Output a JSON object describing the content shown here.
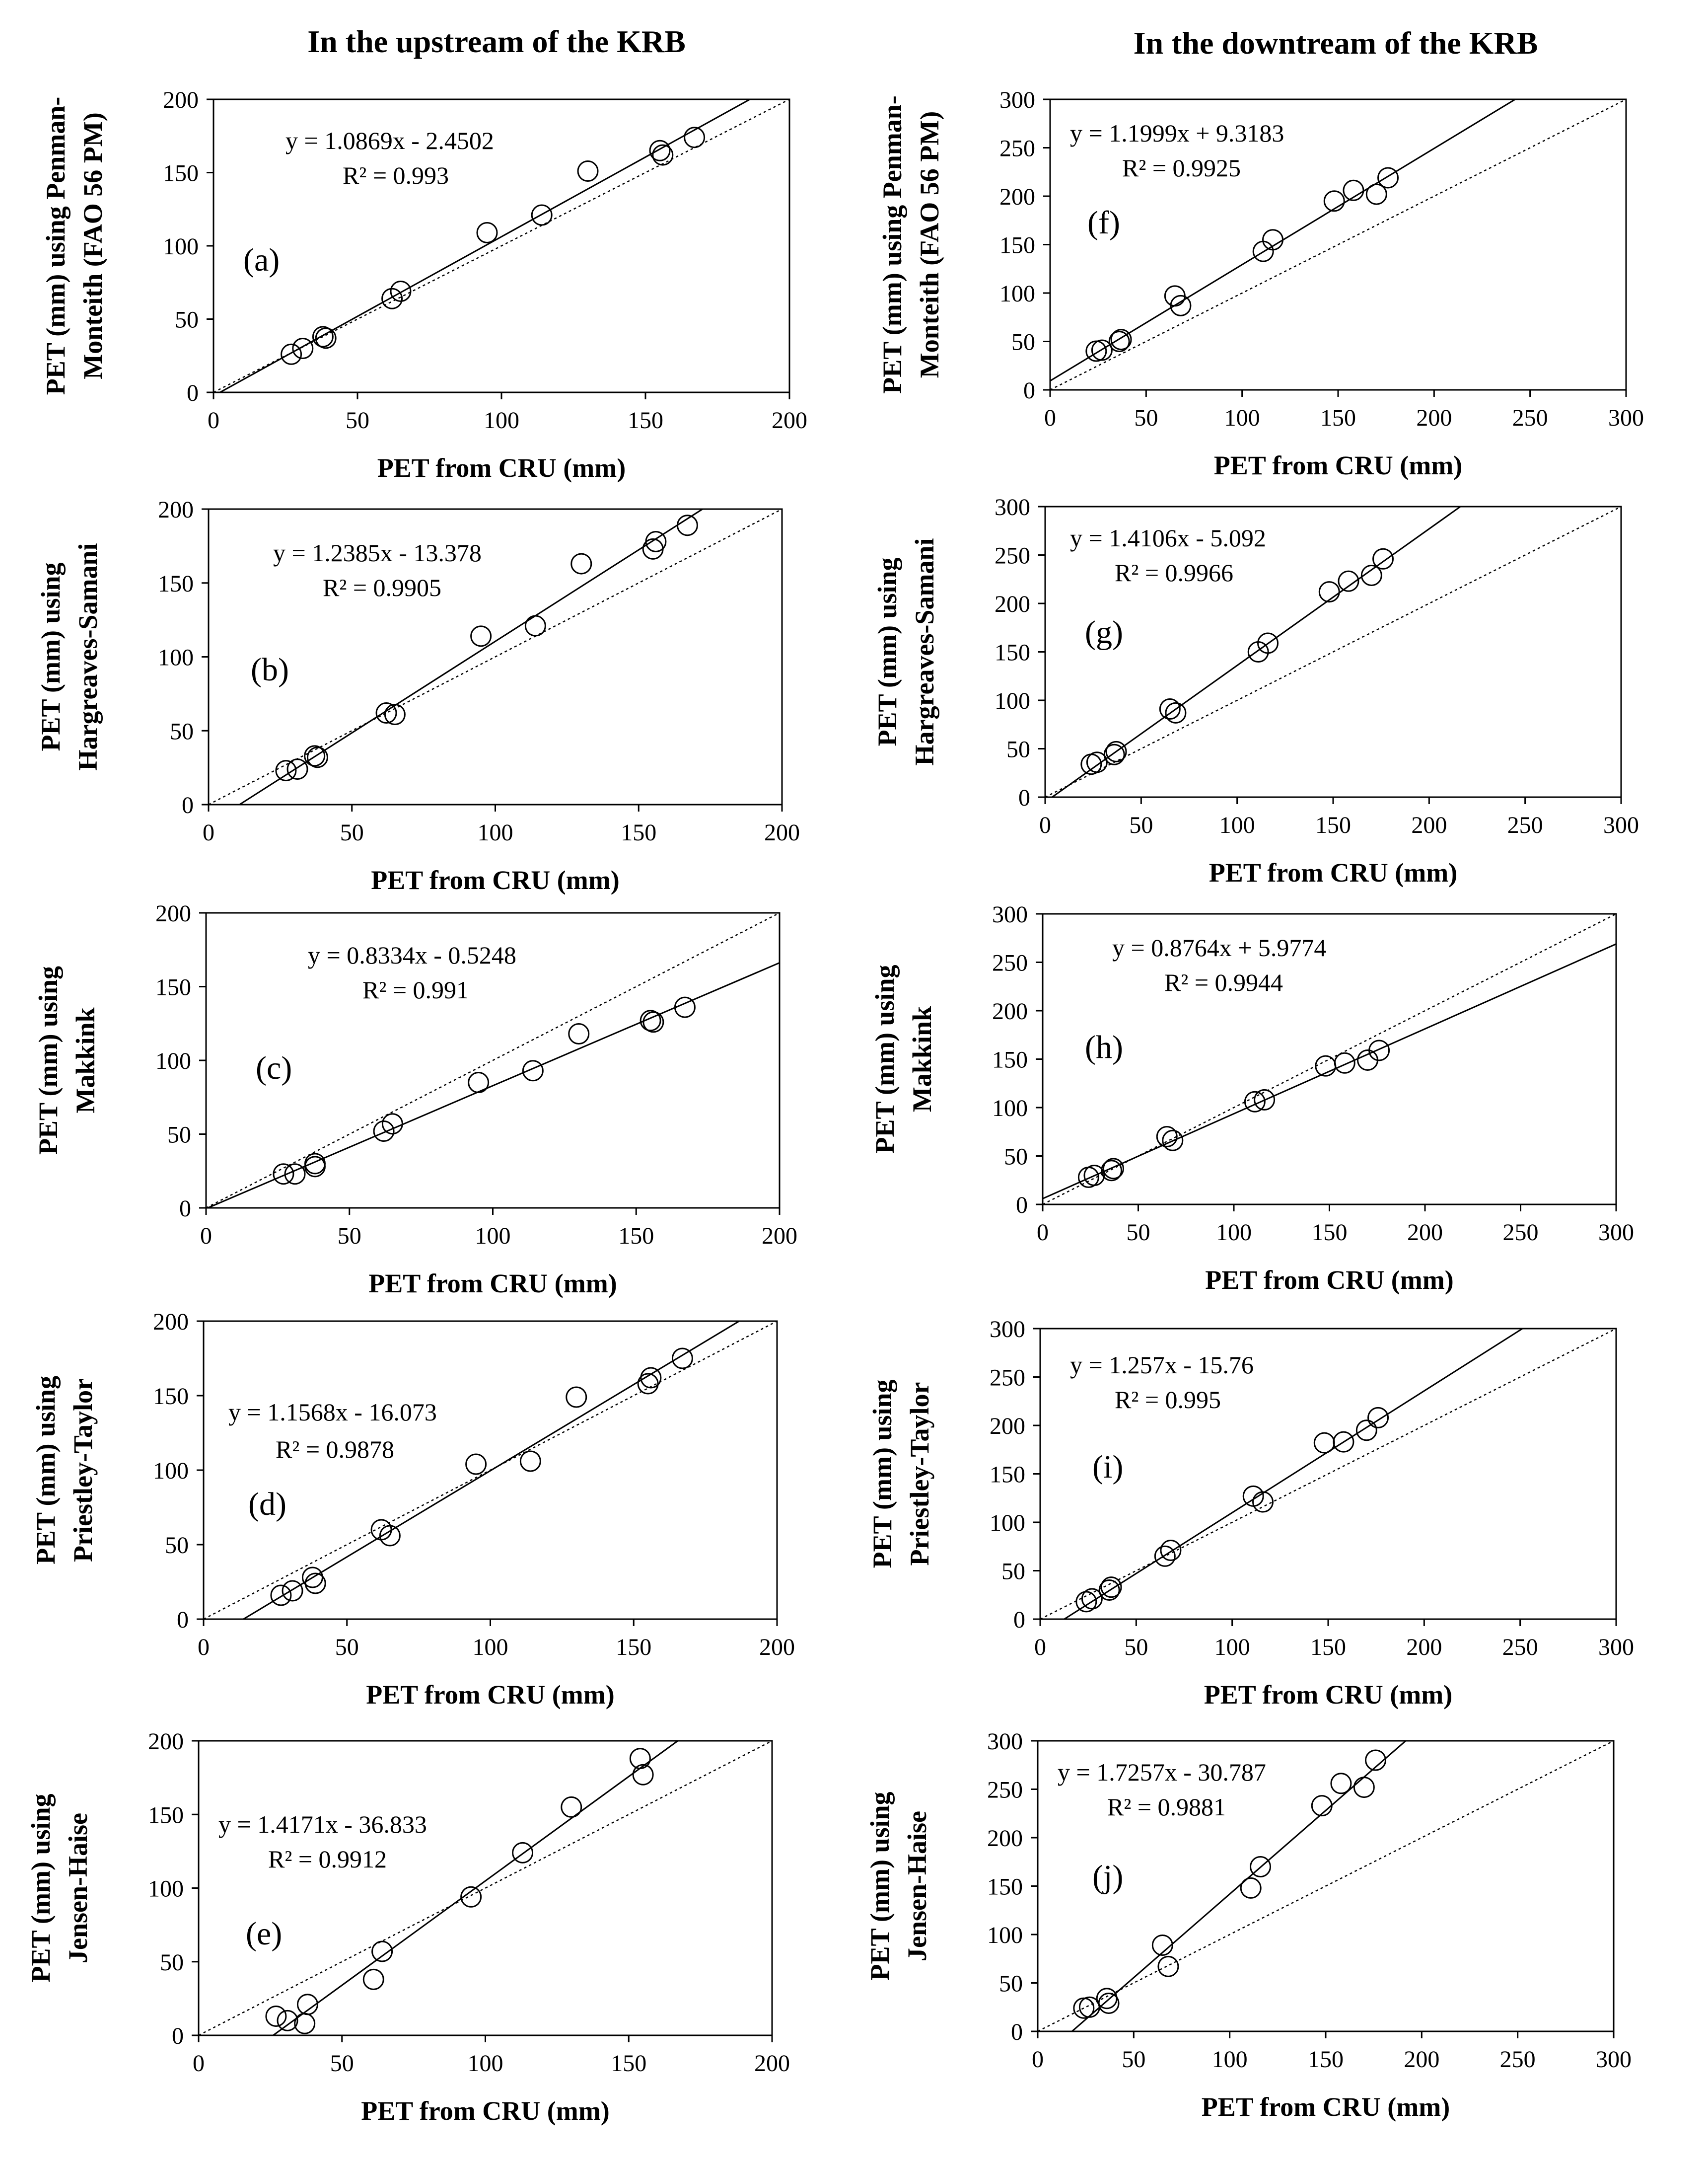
{
  "figure": {
    "left_title": "In the upstream of the KRB",
    "right_title": "In the downtream of the KRB"
  },
  "chart_data": [
    {
      "id": "a",
      "type": "scatter",
      "label": "(a)",
      "xlabel": "PET from CRU (mm)",
      "ylabel": [
        "PET (mm) using Penman-",
        "Monteith (FAO 56 PM)"
      ],
      "xlim": [
        0,
        200
      ],
      "ylim": [
        0,
        200
      ],
      "xticks": [
        0,
        50,
        100,
        150,
        200
      ],
      "yticks": [
        0,
        50,
        100,
        150,
        200
      ],
      "equation": "y = 1.0869x - 2.4502",
      "r2": "R² = 0.993",
      "fit": {
        "slope": 1.0869,
        "intercept": -2.4502
      },
      "points": [
        [
          27,
          26
        ],
        [
          31,
          30
        ],
        [
          38,
          38
        ],
        [
          39,
          37
        ],
        [
          62,
          64
        ],
        [
          65,
          69
        ],
        [
          95,
          109
        ],
        [
          114,
          121
        ],
        [
          130,
          151
        ],
        [
          155,
          165
        ],
        [
          156,
          162
        ],
        [
          167,
          174
        ]
      ]
    },
    {
      "id": "b",
      "type": "scatter",
      "label": "(b)",
      "xlabel": "PET from CRU (mm)",
      "ylabel": [
        "PET (mm) using",
        "Hargreaves-Samani"
      ],
      "xlim": [
        0,
        200
      ],
      "ylim": [
        0,
        200
      ],
      "xticks": [
        0,
        50,
        100,
        150,
        200
      ],
      "yticks": [
        0,
        50,
        100,
        150,
        200
      ],
      "equation": "y = 1.2385x - 13.378",
      "r2": "R² = 0.9905",
      "fit": {
        "slope": 1.2385,
        "intercept": -13.378
      },
      "points": [
        [
          27,
          23
        ],
        [
          31,
          24
        ],
        [
          37,
          33
        ],
        [
          38,
          32
        ],
        [
          62,
          62
        ],
        [
          65,
          61
        ],
        [
          95,
          114
        ],
        [
          114,
          121
        ],
        [
          130,
          163
        ],
        [
          155,
          173
        ],
        [
          156,
          178
        ],
        [
          167,
          189
        ]
      ]
    },
    {
      "id": "c",
      "type": "scatter",
      "label": "(c)",
      "xlabel": "PET from CRU (mm)",
      "ylabel": [
        "PET (mm) using",
        "Makkink"
      ],
      "xlim": [
        0,
        200
      ],
      "ylim": [
        0,
        200
      ],
      "xticks": [
        0,
        50,
        100,
        150,
        200
      ],
      "yticks": [
        0,
        50,
        100,
        150,
        200
      ],
      "equation": "y = 0.8334x - 0.5248",
      "r2": "R² = 0.991",
      "fit": {
        "slope": 0.8334,
        "intercept": -0.5248
      },
      "points": [
        [
          27,
          23
        ],
        [
          31,
          23
        ],
        [
          38,
          30
        ],
        [
          38,
          28
        ],
        [
          62,
          52
        ],
        [
          65,
          57
        ],
        [
          95,
          85
        ],
        [
          114,
          93
        ],
        [
          130,
          118
        ],
        [
          155,
          127
        ],
        [
          156,
          126
        ],
        [
          167,
          136
        ]
      ]
    },
    {
      "id": "d",
      "type": "scatter",
      "label": "(d)",
      "xlabel": "PET from CRU (mm)",
      "ylabel": [
        "PET (mm) using",
        "Priestley-Taylor"
      ],
      "xlim": [
        0,
        200
      ],
      "ylim": [
        0,
        200
      ],
      "xticks": [
        0,
        50,
        100,
        150,
        200
      ],
      "yticks": [
        0,
        50,
        100,
        150,
        200
      ],
      "equation": "y = 1.1568x - 16.073",
      "r2": "R² = 0.9878",
      "fit": {
        "slope": 1.1568,
        "intercept": -16.073
      },
      "points": [
        [
          27,
          16
        ],
        [
          31,
          19
        ],
        [
          38,
          28
        ],
        [
          39,
          24
        ],
        [
          62,
          60
        ],
        [
          65,
          56
        ],
        [
          95,
          104
        ],
        [
          114,
          106
        ],
        [
          130,
          149
        ],
        [
          155,
          158
        ],
        [
          156,
          162
        ],
        [
          167,
          175
        ]
      ]
    },
    {
      "id": "e",
      "type": "scatter",
      "label": "(e)",
      "xlabel": "PET from CRU (mm)",
      "ylabel": [
        "PET (mm) using",
        "Jensen-Haise"
      ],
      "xlim": [
        0,
        200
      ],
      "ylim": [
        0,
        200
      ],
      "xticks": [
        0,
        50,
        100,
        150,
        200
      ],
      "yticks": [
        0,
        50,
        100,
        150,
        200
      ],
      "equation": "y = 1.4171x - 36.833",
      "r2": "R² = 0.9912",
      "fit": {
        "slope": 1.4171,
        "intercept": -36.833
      },
      "points": [
        [
          27,
          13
        ],
        [
          31,
          10
        ],
        [
          37,
          8
        ],
        [
          38,
          21
        ],
        [
          61,
          38
        ],
        [
          64,
          57
        ],
        [
          95,
          94
        ],
        [
          113,
          124
        ],
        [
          130,
          155
        ],
        [
          154,
          188
        ],
        [
          155,
          177
        ]
      ]
    },
    {
      "id": "f",
      "type": "scatter",
      "label": "(f)",
      "xlabel": "PET from CRU (mm)",
      "ylabel": [
        "PET (mm) using Penman-",
        "Monteith (FAO 56 PM)"
      ],
      "xlim": [
        0,
        300
      ],
      "ylim": [
        0,
        300
      ],
      "xticks": [
        0,
        50,
        100,
        150,
        200,
        250,
        300
      ],
      "yticks": [
        0,
        50,
        100,
        150,
        200,
        250,
        300
      ],
      "equation": "y = 1.1999x + 9.3183",
      "r2": "R² = 0.9925",
      "fit": {
        "slope": 1.1999,
        "intercept": 9.3183
      },
      "points": [
        [
          24,
          40
        ],
        [
          27,
          41
        ],
        [
          36,
          50
        ],
        [
          37,
          52
        ],
        [
          65,
          97
        ],
        [
          68,
          87
        ],
        [
          111,
          143
        ],
        [
          116,
          155
        ],
        [
          148,
          195
        ],
        [
          158,
          206
        ],
        [
          170,
          202
        ],
        [
          176,
          219
        ]
      ]
    },
    {
      "id": "g",
      "type": "scatter",
      "label": "(g)",
      "xlabel": "PET from CRU (mm)",
      "ylabel": [
        "PET (mm) using",
        "Hargreaves-Samani"
      ],
      "xlim": [
        0,
        300
      ],
      "ylim": [
        0,
        300
      ],
      "xticks": [
        0,
        50,
        100,
        150,
        200,
        250,
        300
      ],
      "yticks": [
        0,
        50,
        100,
        150,
        200,
        250,
        300
      ],
      "equation": "y = 1.4106x - 5.092",
      "r2": "R² = 0.9966",
      "fit": {
        "slope": 1.4106,
        "intercept": -5.092
      },
      "points": [
        [
          24,
          34
        ],
        [
          27,
          36
        ],
        [
          36,
          44
        ],
        [
          37,
          47
        ],
        [
          65,
          91
        ],
        [
          68,
          87
        ],
        [
          111,
          150
        ],
        [
          116,
          159
        ],
        [
          148,
          212
        ],
        [
          158,
          223
        ],
        [
          170,
          229
        ],
        [
          176,
          246
        ]
      ]
    },
    {
      "id": "h",
      "type": "scatter",
      "label": "(h)",
      "xlabel": "PET from CRU (mm)",
      "ylabel": [
        "PET (mm) using",
        "Makkink"
      ],
      "xlim": [
        0,
        300
      ],
      "ylim": [
        0,
        300
      ],
      "xticks": [
        0,
        50,
        100,
        150,
        200,
        250,
        300
      ],
      "yticks": [
        0,
        50,
        100,
        150,
        200,
        250,
        300
      ],
      "equation": "y = 0.8764x + 5.9774",
      "r2": "R² = 0.9944",
      "fit": {
        "slope": 0.8764,
        "intercept": 5.9774
      },
      "points": [
        [
          24,
          28
        ],
        [
          27,
          30
        ],
        [
          36,
          35
        ],
        [
          37,
          37
        ],
        [
          65,
          70
        ],
        [
          68,
          66
        ],
        [
          111,
          106
        ],
        [
          116,
          108
        ],
        [
          148,
          143
        ],
        [
          158,
          146
        ],
        [
          170,
          149
        ],
        [
          176,
          159
        ]
      ]
    },
    {
      "id": "i",
      "type": "scatter",
      "label": "(i)",
      "xlabel": "PET from CRU (mm)",
      "ylabel": [
        "PET (mm) using",
        "Priestley-Taylor"
      ],
      "xlim": [
        0,
        300
      ],
      "ylim": [
        0,
        300
      ],
      "xticks": [
        0,
        50,
        100,
        150,
        200,
        250,
        300
      ],
      "yticks": [
        0,
        50,
        100,
        150,
        200,
        250,
        300
      ],
      "equation": "y = 1.257x - 15.76",
      "r2": "R² = 0.995",
      "fit": {
        "slope": 1.257,
        "intercept": -15.76
      },
      "points": [
        [
          24,
          18
        ],
        [
          27,
          21
        ],
        [
          36,
          30
        ],
        [
          37,
          33
        ],
        [
          65,
          65
        ],
        [
          68,
          71
        ],
        [
          111,
          127
        ],
        [
          116,
          121
        ],
        [
          148,
          182
        ],
        [
          158,
          183
        ],
        [
          170,
          195
        ],
        [
          176,
          208
        ]
      ]
    },
    {
      "id": "j",
      "type": "scatter",
      "label": "(j)",
      "xlabel": "PET from CRU (mm)",
      "ylabel": [
        "PET (mm) using",
        "Jensen-Haise"
      ],
      "xlim": [
        0,
        300
      ],
      "ylim": [
        0,
        300
      ],
      "xticks": [
        0,
        50,
        100,
        150,
        200,
        250,
        300
      ],
      "yticks": [
        0,
        50,
        100,
        150,
        200,
        250,
        300
      ],
      "equation": "y = 1.7257x - 30.787",
      "r2": "R² = 0.9881",
      "fit": {
        "slope": 1.7257,
        "intercept": -30.787
      },
      "points": [
        [
          24,
          24
        ],
        [
          27,
          25
        ],
        [
          36,
          34
        ],
        [
          37,
          29
        ],
        [
          65,
          89
        ],
        [
          68,
          67
        ],
        [
          111,
          148
        ],
        [
          116,
          170
        ],
        [
          148,
          233
        ],
        [
          158,
          256
        ],
        [
          170,
          252
        ],
        [
          176,
          280
        ]
      ]
    }
  ]
}
